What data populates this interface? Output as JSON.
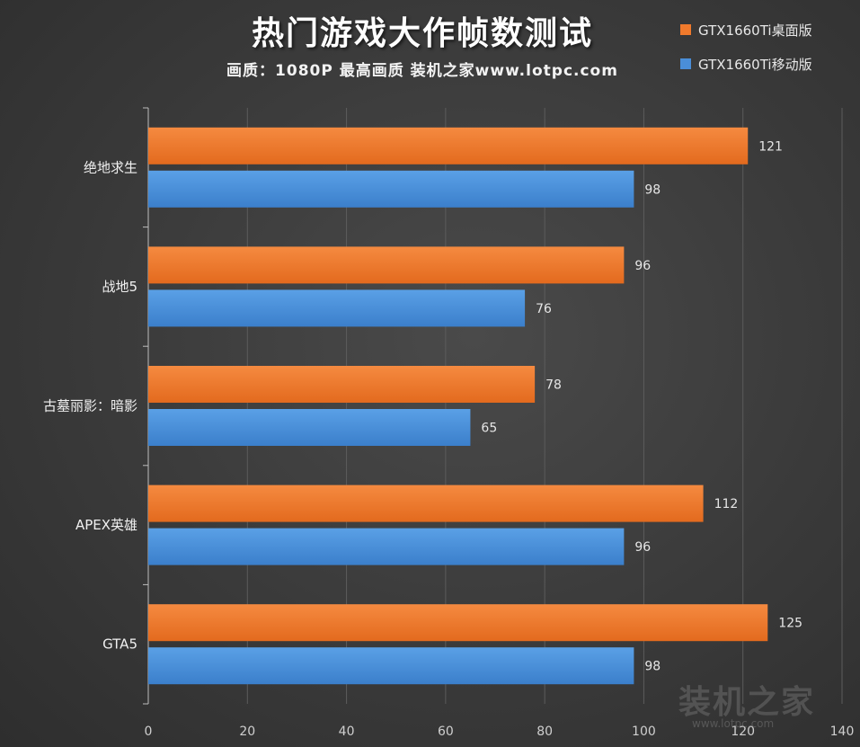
{
  "chart_data": {
    "type": "bar",
    "orientation": "horizontal",
    "title": "热门游戏大作帧数测试",
    "subtitle": "画质：1080P 最高画质 装机之家www.lotpc.com",
    "categories": [
      "绝地求生",
      "战地5",
      "古墓丽影：暗影",
      "APEX英雄",
      "GTA5"
    ],
    "series": [
      {
        "name": "GTX1660Ti桌面版",
        "values": [
          121,
          96,
          78,
          112,
          125
        ],
        "color": "#F07A2C"
      },
      {
        "name": "GTX1660Ti移动版",
        "values": [
          98,
          76,
          65,
          96,
          98
        ],
        "color": "#4A8ED8"
      }
    ],
    "xlim": [
      0,
      140
    ],
    "xticks": [
      0,
      20,
      40,
      60,
      80,
      100,
      120,
      140
    ],
    "grid": true,
    "legend_position": "top-right"
  },
  "watermark": {
    "text": "装机之家",
    "url": "www.lotpc.com"
  }
}
